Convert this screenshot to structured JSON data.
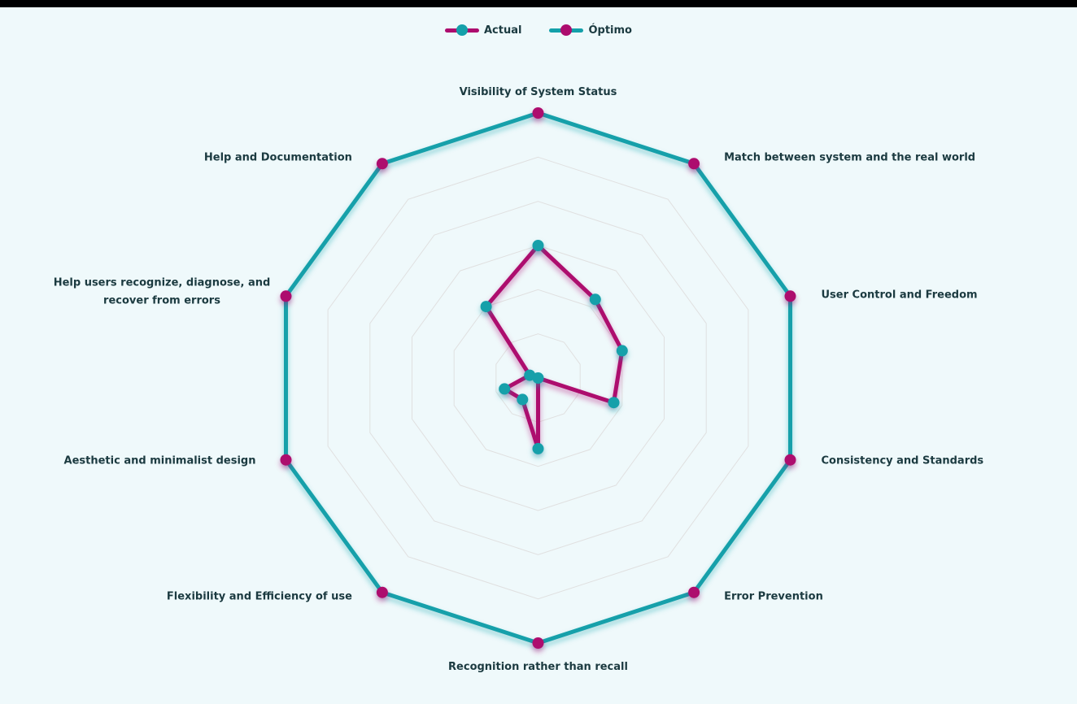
{
  "page": {
    "background_color": "#eff9fb",
    "top_bar_color": "#000000"
  },
  "legend": {
    "position": "top",
    "items": [
      {
        "label": "Actual",
        "line_color": "#ad0c6e",
        "dot_color": "#14a0aa"
      },
      {
        "label": "Óptimo",
        "line_color": "#14a0aa",
        "dot_color": "#ad0c6e"
      }
    ]
  },
  "chart_data": {
    "type": "radar",
    "title": "",
    "categories": [
      {
        "label": "Visibility of System Status",
        "lines": [
          "Visibility of System Status"
        ]
      },
      {
        "label": "Match between system and the real world",
        "lines": [
          "Match between system and the real world"
        ]
      },
      {
        "label": "User Control and Freedom",
        "lines": [
          "User Control and Freedom"
        ]
      },
      {
        "label": "Consistency and Standards",
        "lines": [
          "Consistency and Standards"
        ]
      },
      {
        "label": "Error Prevention",
        "lines": [
          "Error Prevention"
        ]
      },
      {
        "label": "Recognition rather than recall",
        "lines": [
          "Recognition rather than recall"
        ]
      },
      {
        "label": "Flexibility and Efficiency of use",
        "lines": [
          "Flexibility and Efficiency of use"
        ]
      },
      {
        "label": "Aesthetic and minimalist design",
        "lines": [
          "Aesthetic and minimalist design"
        ]
      },
      {
        "label": "Help users recognize, diagnose, and recover from errors",
        "lines": [
          "Help users recognize, diagnose, and",
          "recover from errors"
        ]
      },
      {
        "label": "Help and Documentation",
        "lines": [
          "Help and Documentation"
        ]
      }
    ],
    "series": [
      {
        "name": "Actual",
        "line_color": "#ad0c6e",
        "point_color": "#14a0aa",
        "values": [
          15,
          11,
          10,
          9,
          0,
          8,
          3,
          4,
          1,
          10
        ]
      },
      {
        "name": "Óptimo",
        "line_color": "#14a0aa",
        "point_color": "#ad0c6e",
        "values": [
          30,
          30,
          30,
          30,
          30,
          30,
          30,
          30,
          30,
          30
        ]
      }
    ],
    "scale": {
      "min": 0,
      "max": 30,
      "step": 5,
      "rings": 6,
      "tick_labels_visible": false
    },
    "grid": {
      "ring_color": "#e0e0e0",
      "angle_lines_visible": false
    },
    "label_color": "#1b3a40",
    "legend_position": "top"
  }
}
